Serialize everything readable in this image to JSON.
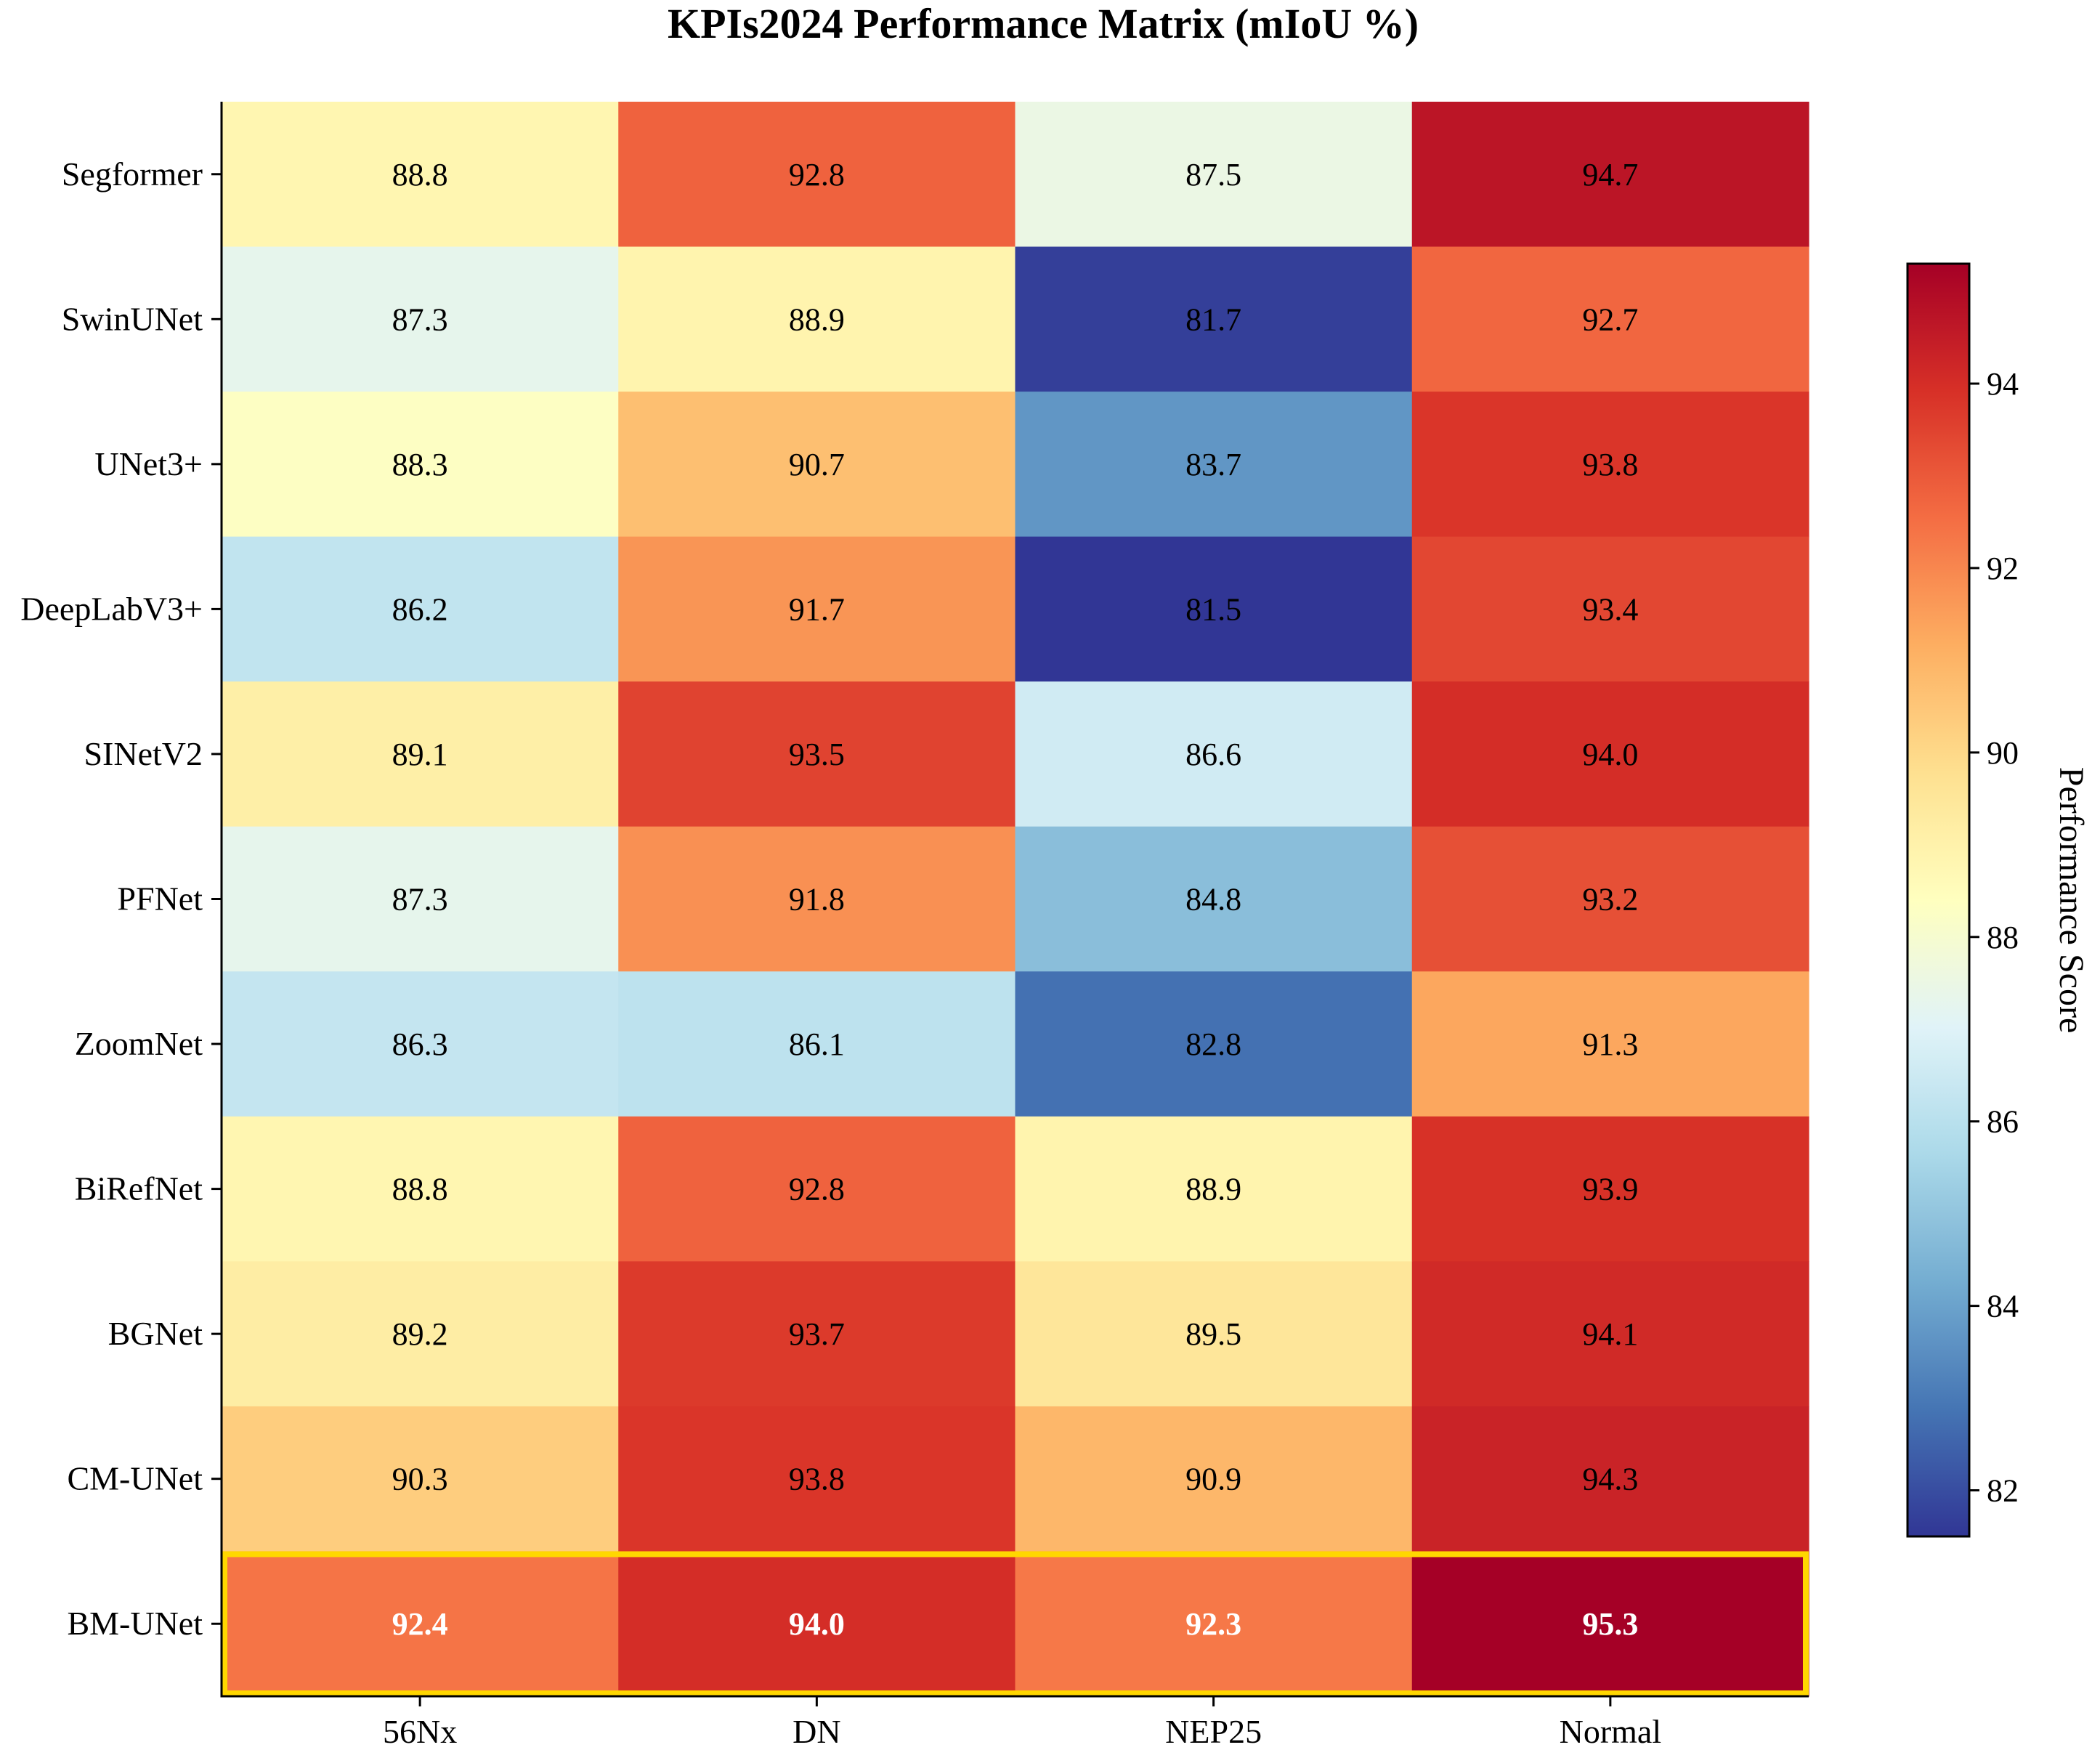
{
  "chart_data": {
    "type": "heatmap",
    "title": "KPIs2024 Performance Matrix (mIoU %)",
    "columns": [
      "56Nx",
      "DN",
      "NEP25",
      "Normal"
    ],
    "rows": [
      "Segformer",
      "SwinUNet",
      "UNet3+",
      "DeepLabV3+",
      "SINetV2",
      "PFNet",
      "ZoomNet",
      "BiRefNet",
      "BGNet",
      "CM-UNet",
      "BM-UNet"
    ],
    "values": [
      [
        88.8,
        92.8,
        87.5,
        94.7
      ],
      [
        87.3,
        88.9,
        81.7,
        92.7
      ],
      [
        88.3,
        90.7,
        83.7,
        93.8
      ],
      [
        86.2,
        91.7,
        81.5,
        93.4
      ],
      [
        89.1,
        93.5,
        86.6,
        94.0
      ],
      [
        87.3,
        91.8,
        84.8,
        93.2
      ],
      [
        86.3,
        86.1,
        82.8,
        91.3
      ],
      [
        88.8,
        92.8,
        88.9,
        93.9
      ],
      [
        89.2,
        93.7,
        89.5,
        94.1
      ],
      [
        90.3,
        93.8,
        90.9,
        94.3
      ],
      [
        92.4,
        94.0,
        92.3,
        95.3
      ]
    ],
    "highlighted_row": "BM-UNet",
    "highlight_color": "#ffd700",
    "colormap": "RdYlBu_r",
    "vmin": 81.5,
    "vmax": 95.3,
    "colorbar": {
      "label": "Performance Score",
      "ticks": [
        82,
        84,
        86,
        88,
        90,
        92,
        94
      ]
    },
    "colormap_stops": [
      "#313695",
      "#4575b4",
      "#74add1",
      "#abd9e9",
      "#e0f3f8",
      "#ffffbf",
      "#fee090",
      "#fdae61",
      "#f46d43",
      "#d73027",
      "#a50026"
    ]
  }
}
